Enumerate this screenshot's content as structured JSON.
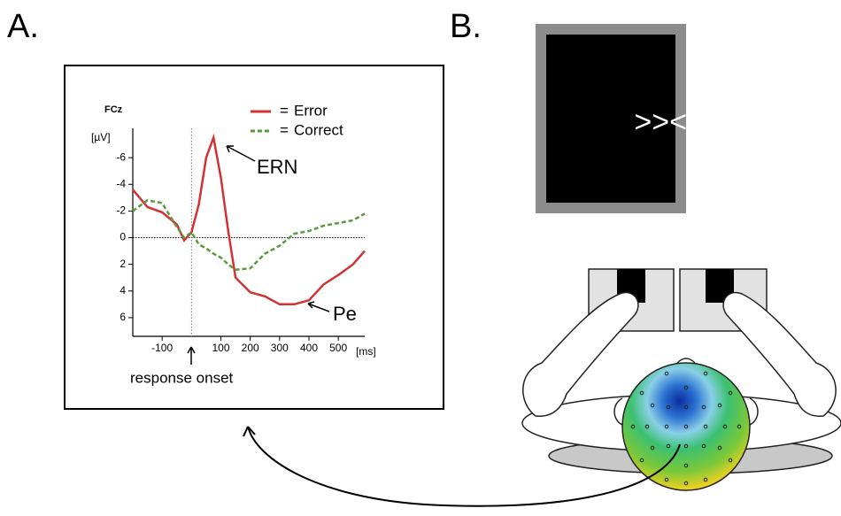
{
  "panel_labels": [
    "A.",
    "B."
  ],
  "stimulus": ">><>>",
  "chart_data": {
    "type": "line",
    "title": "FCz",
    "y_label": "[µV]",
    "x_label": "[ms]",
    "legend_separator": "=",
    "x": [
      -200,
      -150,
      -100,
      -50,
      -25,
      0,
      25,
      50,
      75,
      100,
      125,
      150,
      200,
      250,
      300,
      350,
      400,
      450,
      500,
      550,
      590
    ],
    "series": [
      {
        "name": "Error",
        "color": "#d23232",
        "dashed": false,
        "values": [
          -3.6,
          -2.3,
          -1.9,
          -1.0,
          0.2,
          -0.4,
          -2.5,
          -6.0,
          -7.5,
          -4.5,
          -0.5,
          3.0,
          4.1,
          4.4,
          5.0,
          5.0,
          4.7,
          3.5,
          2.8,
          2.0,
          1.0
        ]
      },
      {
        "name": "Correct",
        "color": "#5a9a40",
        "dashed": true,
        "values": [
          -2.0,
          -2.8,
          -2.6,
          -0.8,
          0.0,
          -0.4,
          0.5,
          0.8,
          1.2,
          1.5,
          2.0,
          2.4,
          2.3,
          1.2,
          0.6,
          -0.3,
          -0.5,
          -0.9,
          -1.1,
          -1.3,
          -1.8
        ]
      }
    ],
    "xlim": [
      -200,
      590
    ],
    "xticks": [
      -100,
      100,
      200,
      300,
      400,
      500
    ],
    "ylim": [
      7.4,
      -8.2
    ],
    "yticks": [
      -6,
      -4,
      -2,
      0,
      2,
      4,
      6
    ],
    "annotations": [
      "ERN",
      "Pe",
      "response onset"
    ]
  }
}
